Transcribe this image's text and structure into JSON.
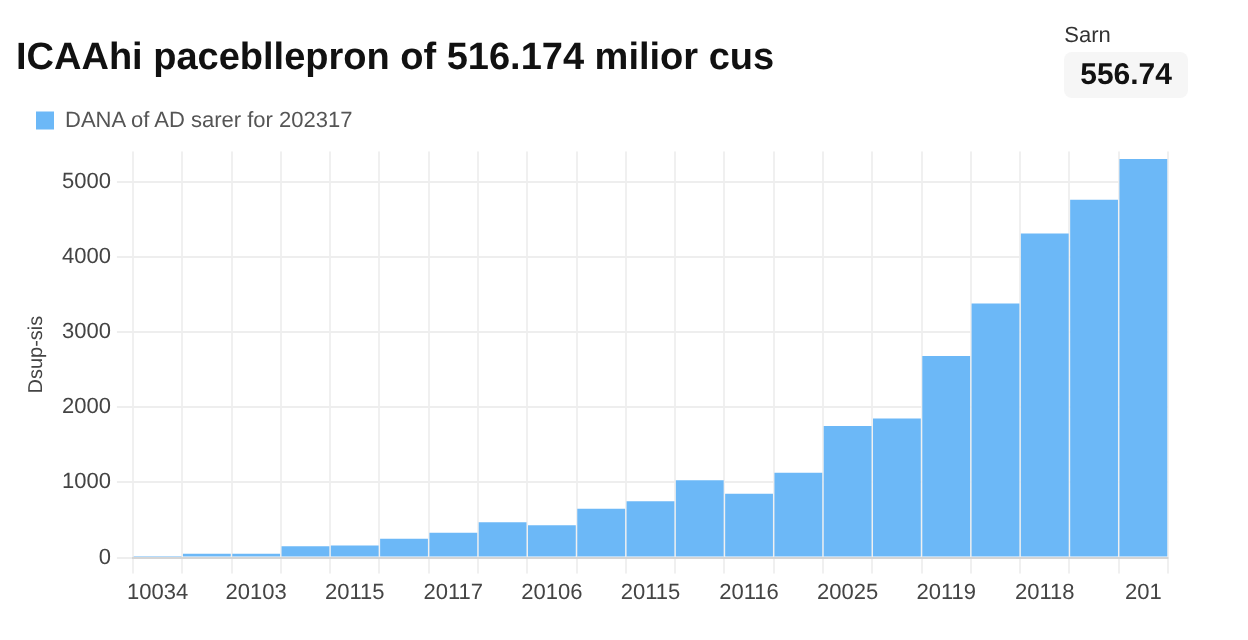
{
  "chart_data": {
    "type": "bar",
    "title": "ICAAhi pacebllepron of 516.174 milior cus",
    "ylabel": "Dsup-sis",
    "annotations": [
      "Sarn",
      "556.74"
    ],
    "categories": [
      "10034",
      null,
      "20103",
      null,
      "20115",
      null,
      "20117",
      null,
      "20106",
      null,
      "20115",
      null,
      "20116",
      null,
      "20025",
      null,
      "20119",
      null,
      "20118",
      null,
      "201"
    ],
    "series": [
      {
        "name": "DANA of AD sarer for 202317",
        "color": "#6cb8f7",
        "values": [
          20,
          50,
          50,
          150,
          160,
          250,
          330,
          470,
          430,
          650,
          750,
          1030,
          850,
          1130,
          1750,
          1850,
          2680,
          3380,
          4310,
          4760,
          5300
        ]
      }
    ],
    "ylim": [
      0,
      5400
    ],
    "yticks": [
      0,
      1000,
      2000,
      3000,
      4000,
      5000
    ],
    "grid": true,
    "legend": "top left"
  }
}
